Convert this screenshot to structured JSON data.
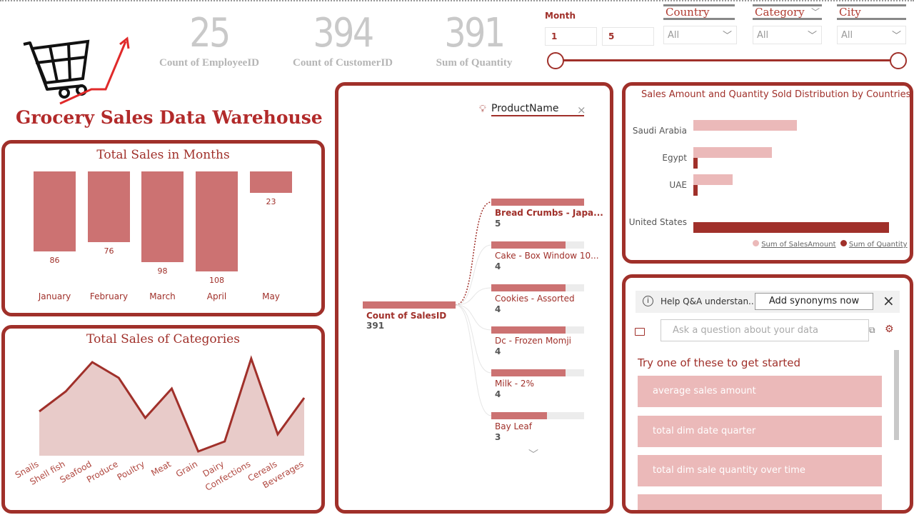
{
  "report_title": "Grocery Sales Data Warehouse",
  "kpis": [
    {
      "value": "25",
      "label": "Count of EmployeeID"
    },
    {
      "value": "394",
      "label": "Count of CustomerID"
    },
    {
      "value": "391",
      "label": "Sum of Quantity"
    }
  ],
  "slicers": {
    "month": {
      "label": "Month",
      "min": "1",
      "max": "5",
      "range_low_fraction": 0,
      "range_high_fraction": 1
    },
    "country": {
      "label": "Country",
      "value": "All"
    },
    "category": {
      "label": "Category",
      "value": "All"
    },
    "city": {
      "label": "City",
      "value": "All"
    }
  },
  "chart_data": [
    {
      "type": "bar",
      "title": "Total Sales in Months",
      "categories": [
        "January",
        "February",
        "March",
        "April",
        "May"
      ],
      "values": [
        86,
        76,
        98,
        108,
        23
      ],
      "data_labels": [
        "86",
        "76",
        "98",
        "108",
        "23"
      ],
      "y_axis": "reversed (bars hang from top)",
      "grid": false,
      "color": "#cc7272"
    },
    {
      "type": "area",
      "title": "Total Sales of Categories",
      "categories": [
        "Snails",
        "Shell fish",
        "Seafood",
        "Produce",
        "Poultry",
        "Meat",
        "Grain",
        "Dairy",
        "Confections",
        "Cereals",
        "Beverages"
      ],
      "values": [
        62,
        90,
        131,
        109,
        53,
        94,
        6,
        20,
        136,
        30,
        81
      ],
      "grid": false,
      "line_color": "#a0302a",
      "fill_color": "#e8cbc9"
    },
    {
      "type": "bar",
      "orientation": "horizontal",
      "title": "Sales Amount and Quantity Sold Distribution by Countries",
      "categories": [
        "Saudi Arabia",
        "Egypt",
        "UAE",
        "United States"
      ],
      "series": [
        {
          "name": "Sum of SalesAmount",
          "values": [
            0.53,
            0.4,
            0.2,
            0
          ],
          "color": "#ebb9b9"
        },
        {
          "name": "Sum of Quantity",
          "values": [
            0,
            0.02,
            0.02,
            1.0
          ],
          "color": "#a0302a"
        }
      ],
      "legend": "bottom-right",
      "grid": false
    }
  ],
  "decomposition": {
    "field": "ProductName",
    "root": {
      "label": "Count of SalesID",
      "value": "391"
    },
    "children": [
      {
        "label": "Bread Crumbs - Japa...",
        "value": 5,
        "selected": true
      },
      {
        "label": "Cake - Box Window 10...",
        "value": 4
      },
      {
        "label": "Cookies - Assorted",
        "value": 4
      },
      {
        "label": "Dc - Frozen Momji",
        "value": 4
      },
      {
        "label": "Milk - 2%",
        "value": 4
      },
      {
        "label": "Bay Leaf",
        "value": 3
      }
    ],
    "max": 5
  },
  "qna": {
    "banner_text": "Help Q&A understan...",
    "banner_button": "Add synonyms now",
    "input_placeholder": "Ask a question about your data",
    "prompt": "Try one of these to get started",
    "suggestions": [
      "average sales amount",
      "total dim date quarter",
      "total dim sale quantity over time",
      ""
    ]
  },
  "colors": {
    "accent": "#a0302a",
    "bar": "#cc7272",
    "light": "#ebb9b9",
    "kpi": "#c9c9c9"
  }
}
